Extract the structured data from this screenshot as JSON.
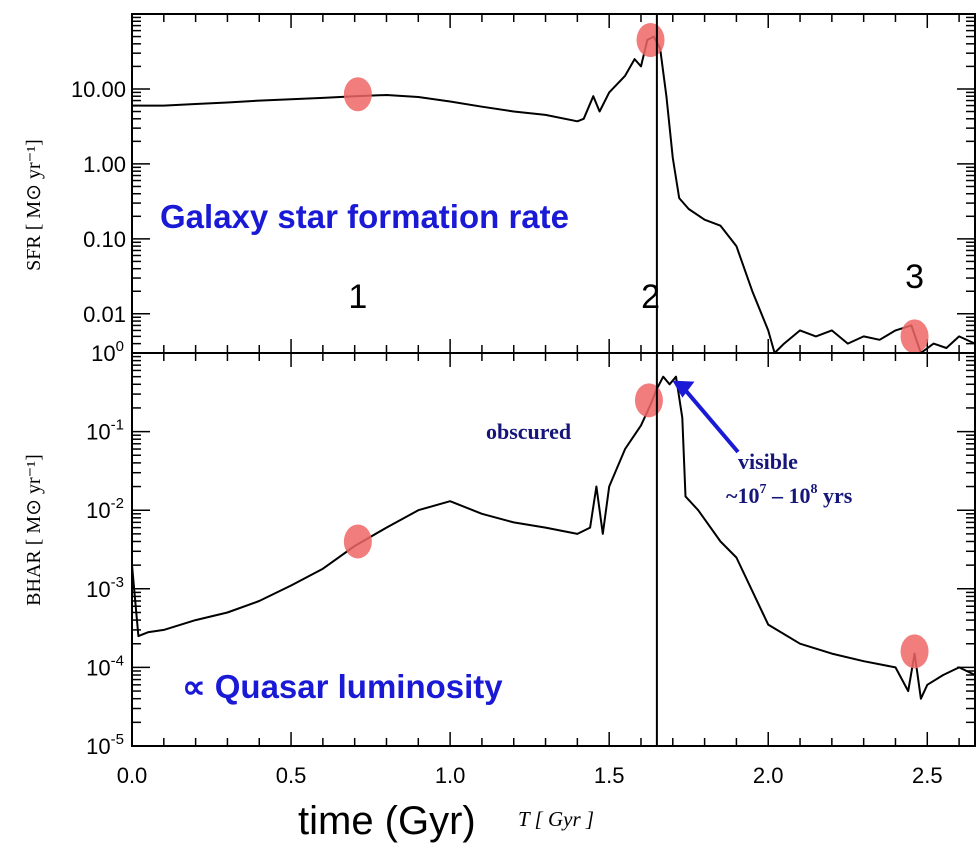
{
  "chart_data": [
    {
      "type": "line",
      "panel": "top",
      "ylabel": "SFR [ M⊙ yr⁻¹]",
      "yscale": "log",
      "ylim": [
        0.003,
        100
      ],
      "xlim": [
        0,
        2.65
      ],
      "yticks": [
        {
          "value": 0.01,
          "label": "0.01"
        },
        {
          "value": 0.1,
          "label": "0.10"
        },
        {
          "value": 1,
          "label": "1.00"
        },
        {
          "value": 10,
          "label": "10.00"
        }
      ],
      "annotation": "Galaxy star formation rate",
      "series": [
        {
          "x": [
            0.0,
            0.1,
            0.2,
            0.3,
            0.4,
            0.5,
            0.6,
            0.7,
            0.8,
            0.9,
            1.0,
            1.1,
            1.2,
            1.3,
            1.4,
            1.42,
            1.45,
            1.47,
            1.5,
            1.55,
            1.58,
            1.6,
            1.62,
            1.64,
            1.66,
            1.68,
            1.7,
            1.72,
            1.75,
            1.8,
            1.85,
            1.9,
            1.95,
            2.0,
            2.02,
            2.05,
            2.1,
            2.15,
            2.2,
            2.25,
            2.3,
            2.35,
            2.4,
            2.45,
            2.48,
            2.52,
            2.56,
            2.6,
            2.65
          ],
          "values": [
            6.0,
            6.0,
            6.3,
            6.6,
            7.0,
            7.3,
            7.6,
            8.0,
            8.3,
            7.8,
            6.8,
            5.8,
            5.0,
            4.5,
            3.7,
            4.0,
            8.0,
            5.0,
            9.0,
            15.0,
            25.0,
            20.0,
            45.0,
            50.0,
            35.0,
            8.0,
            1.2,
            0.35,
            0.25,
            0.18,
            0.15,
            0.08,
            0.02,
            0.006,
            0.003,
            0.004,
            0.006,
            0.005,
            0.006,
            0.004,
            0.005,
            0.0045,
            0.006,
            0.007,
            0.003,
            0.004,
            0.0035,
            0.005,
            0.004
          ]
        }
      ],
      "markers": [
        {
          "x": 0.71,
          "y": 8.5
        },
        {
          "x": 1.63,
          "y": 45
        },
        {
          "x": 2.46,
          "y": 0.005
        }
      ],
      "point_labels": [
        {
          "x": 0.71,
          "y": 0.012,
          "text": "1"
        },
        {
          "x": 1.63,
          "y": 0.012,
          "text": "2"
        },
        {
          "x": 2.46,
          "y": 0.022,
          "text": "3"
        }
      ]
    },
    {
      "type": "line",
      "panel": "bottom",
      "xlabel": "T [ Gyr ]",
      "ylabel": "BHAR [ M⊙ yr⁻¹]",
      "yscale": "log",
      "ylim": [
        1e-05,
        1
      ],
      "xlim": [
        0,
        2.65
      ],
      "xticks": [
        0.0,
        0.5,
        1.0,
        1.5,
        2.0,
        2.5
      ],
      "xtick_labels": [
        "0.0",
        "0.5",
        "1.0",
        "1.5",
        "2.0",
        "2.5"
      ],
      "ytick_labels": [
        {
          "base": "10",
          "exp": "0"
        },
        {
          "base": "10",
          "exp": "-1"
        },
        {
          "base": "10",
          "exp": "-2"
        },
        {
          "base": "10",
          "exp": "-3"
        },
        {
          "base": "10",
          "exp": "-4"
        },
        {
          "base": "10",
          "exp": "-5"
        }
      ],
      "annotation": "∝ Quasar luminosity",
      "series": [
        {
          "x": [
            0.0,
            0.02,
            0.05,
            0.1,
            0.2,
            0.3,
            0.4,
            0.5,
            0.6,
            0.7,
            0.8,
            0.9,
            1.0,
            1.1,
            1.2,
            1.3,
            1.4,
            1.44,
            1.46,
            1.48,
            1.5,
            1.55,
            1.6,
            1.63,
            1.65,
            1.67,
            1.69,
            1.71,
            1.73,
            1.74,
            1.78,
            1.85,
            1.9,
            2.0,
            2.1,
            2.2,
            2.3,
            2.4,
            2.44,
            2.46,
            2.48,
            2.5,
            2.55,
            2.6,
            2.65
          ],
          "values": [
            0.002,
            0.00025,
            0.00028,
            0.0003,
            0.0004,
            0.0005,
            0.0007,
            0.0011,
            0.0018,
            0.0035,
            0.006,
            0.01,
            0.013,
            0.009,
            0.007,
            0.006,
            0.005,
            0.006,
            0.02,
            0.005,
            0.02,
            0.06,
            0.12,
            0.22,
            0.35,
            0.5,
            0.4,
            0.5,
            0.15,
            0.015,
            0.01,
            0.004,
            0.0025,
            0.00035,
            0.0002,
            0.00015,
            0.00012,
            0.0001,
            5e-05,
            0.00015,
            4e-05,
            6e-05,
            8e-05,
            0.0001,
            8e-05
          ]
        }
      ],
      "markers": [
        {
          "x": 0.71,
          "y": 0.004
        },
        {
          "x": 1.625,
          "y": 0.25
        },
        {
          "x": 2.46,
          "y": 0.00016
        }
      ],
      "annotations": [
        {
          "text": "obscured"
        },
        {
          "text": "visible",
          "arrow_to_x": 1.68,
          "arrow_to_y": 0.5
        },
        {
          "text": "~10",
          "sup1": "7",
          "mid": " – 10",
          "sup2": "8",
          "tail": " yrs"
        }
      ]
    }
  ],
  "vertical_line_x": 1.65,
  "bottom_caption": "time (Gyr)",
  "colors": {
    "line": "#000000",
    "marker": "#ee6666",
    "blue_text": "#1a1ad6",
    "annotation_text": "#16167a"
  }
}
